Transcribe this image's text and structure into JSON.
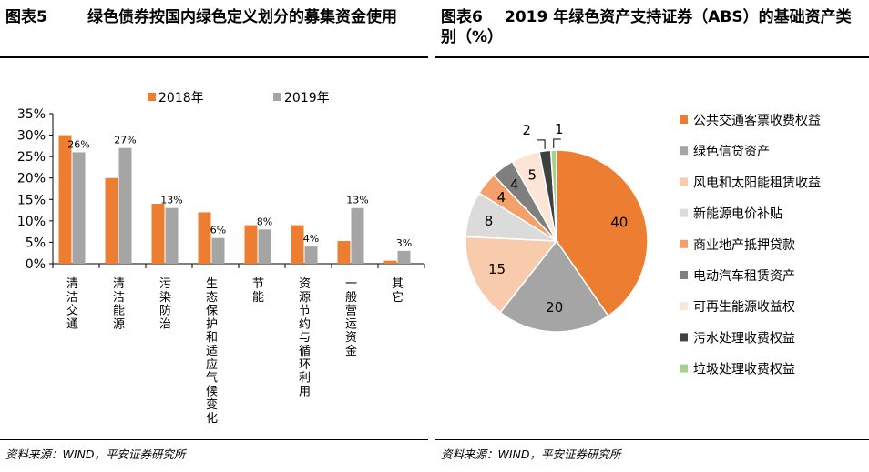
{
  "figure5": {
    "label": "图表5",
    "title": "绿色债券按国内绿色定义划分的募集资金使用",
    "source": "资料来源：WIND，平安证券研究所"
  },
  "figure6": {
    "label": "图表6",
    "title": "2019 年绿色资产支持证券（ABS）的基础资产类别（%）",
    "source": "资料来源：WIND，平安证券研究所"
  },
  "chart_data": [
    {
      "type": "bar",
      "title": "绿色债券按国内绿色定义划分的募集资金使用",
      "categories": [
        "清洁交通",
        "清洁能源",
        "污染防治",
        "生态保护和适应气候变化",
        "节能",
        "资源节约与循环利用",
        "一般营运资金",
        "其它"
      ],
      "series": [
        {
          "name": "2018年",
          "color": "#ED7D31",
          "values": [
            30,
            20,
            14,
            12,
            9,
            9,
            5.3,
            0.7
          ]
        },
        {
          "name": "2019年",
          "color": "#A5A5A5",
          "values": [
            26,
            27,
            13,
            6,
            8,
            4,
            13,
            3
          ]
        }
      ],
      "data_labels": [
        "26%",
        "27%",
        "13%",
        "6%",
        "8%",
        "4%",
        "13%",
        "3%"
      ],
      "ylim": [
        0,
        35
      ],
      "yticks": [
        "0%",
        "5%",
        "10%",
        "15%",
        "20%",
        "25%",
        "30%",
        "35%"
      ],
      "legend": "top"
    },
    {
      "type": "pie",
      "title": "2019 年绿色资产支持证券（ABS）的基础资产类别（%）",
      "slices": [
        {
          "label": "公共交通客票收费权益",
          "value": 40,
          "color": "#ED7D31"
        },
        {
          "label": "绿色信贷资产",
          "value": 20,
          "color": "#A5A5A5"
        },
        {
          "label": "风电和太阳能租赁收益",
          "value": 15,
          "color": "#F8CBAD"
        },
        {
          "label": "新能源电价补贴",
          "value": 8,
          "color": "#DBDBDB"
        },
        {
          "label": "商业地产抵押贷款",
          "value": 4,
          "color": "#F4A06B"
        },
        {
          "label": "电动汽车租赁资产",
          "value": 4,
          "color": "#7F7F7F"
        },
        {
          "label": "可再生能源收益权",
          "value": 5,
          "color": "#FCE4D6"
        },
        {
          "label": "污水处理收费权益",
          "value": 2,
          "color": "#404040"
        },
        {
          "label": "垃圾处理收费权益",
          "value": 1,
          "color": "#A9D18E"
        }
      ],
      "legend": "right"
    }
  ]
}
